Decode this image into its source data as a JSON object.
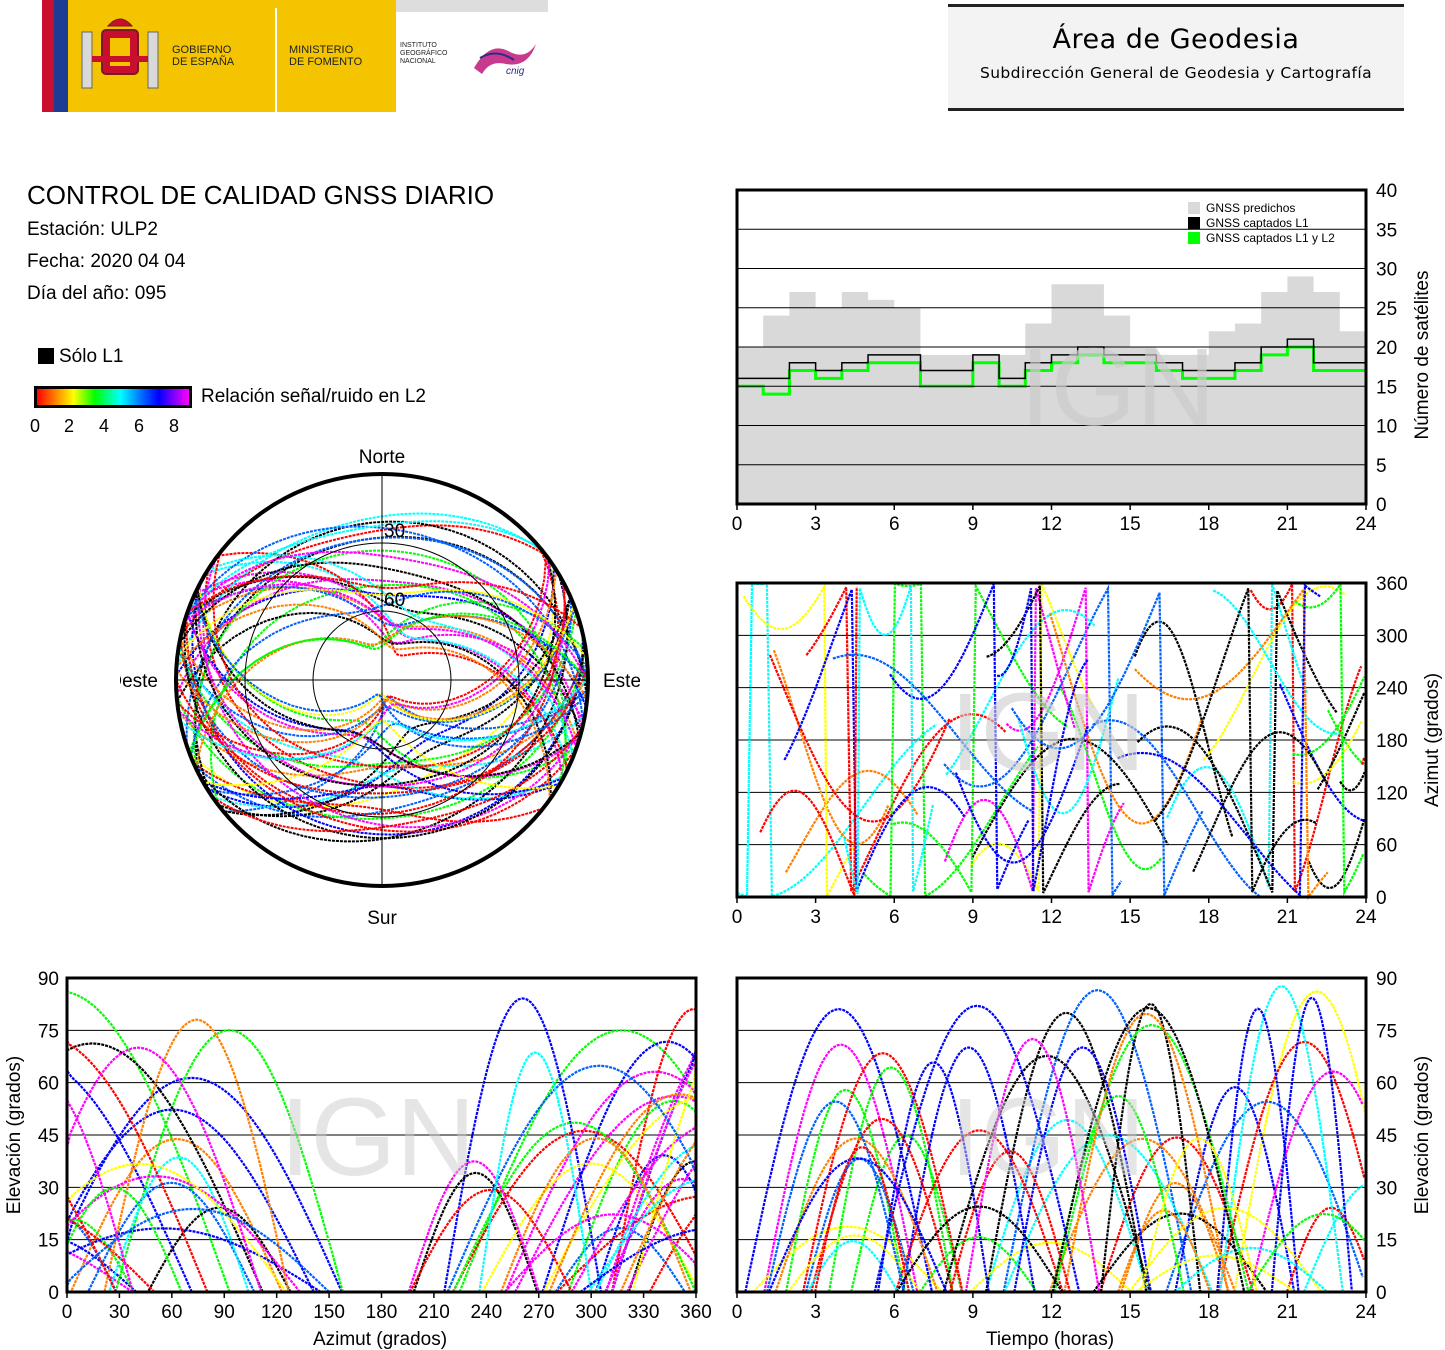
{
  "header": {
    "logo_gobierno": "GOBIERNO DE ESPAÑA",
    "logo_gobierno_l1": "GOBIERNO",
    "logo_gobierno_l2": "DE ESPAÑA",
    "logo_ministerio_l1": "MINISTERIO",
    "logo_ministerio_l2": "DE FOMENTO",
    "logo_instituto_l1": "INSTITUTO",
    "logo_instituto_l2": "GEOGRÁFICO",
    "logo_instituto_l3": "NACIONAL",
    "logo_cnig": "cnig",
    "area_title": "Área de Geodesia",
    "area_subtitle": "Subdirección General de Geodesia y Cartografía"
  },
  "report": {
    "title": "CONTROL DE CALIDAD GNSS DIARIO",
    "station": "Estación: ULP2",
    "date": "Fecha: 2020 04 04",
    "doy": "Día del año: 095",
    "legend_l1": "Sólo L1",
    "snr_label": "Relación señal/ruido en L2",
    "snr_ticks": [
      "0",
      "2",
      "4",
      "6",
      "8"
    ]
  },
  "colors": {
    "snr_scale": [
      "#ff0000",
      "#ff8000",
      "#ffff00",
      "#00ff00",
      "#00ffff",
      "#0060ff",
      "#0000ff",
      "#ff00ff"
    ],
    "l1_only": "#000000",
    "predicted": "#d9d9d9",
    "captured_l1l2": "#00ff00",
    "watermark": "#c8c8c8"
  },
  "watermark": "IGN",
  "chart_data": [
    {
      "id": "satellite_count",
      "type": "area",
      "ylabel": "Número de satélites",
      "xlim": [
        0,
        24
      ],
      "ylim": [
        0,
        40
      ],
      "x_ticks": [
        "0",
        "3",
        "6",
        "9",
        "12",
        "15",
        "18",
        "21",
        "24"
      ],
      "y_ticks": [
        "0",
        "5",
        "10",
        "15",
        "20",
        "25",
        "30",
        "35",
        "40"
      ],
      "grid": true,
      "legend_position": "top-right",
      "x": [
        0,
        1,
        2,
        3,
        4,
        5,
        6,
        7,
        8,
        9,
        10,
        11,
        12,
        13,
        14,
        15,
        16,
        17,
        18,
        19,
        20,
        21,
        22,
        23,
        24
      ],
      "series": [
        {
          "name": "GNSS predichos",
          "values": [
            20,
            24,
            27,
            25,
            27,
            26,
            25,
            19,
            19,
            19,
            19,
            23,
            28,
            28,
            24,
            20,
            19,
            19,
            22,
            23,
            27,
            29,
            27,
            22,
            20
          ]
        },
        {
          "name": "GNSS captados L1",
          "values": [
            16,
            16,
            18,
            17,
            18,
            19,
            19,
            17,
            17,
            19,
            16,
            18,
            19,
            20,
            19,
            19,
            18,
            17,
            17,
            18,
            20,
            21,
            18,
            18,
            16
          ]
        },
        {
          "name": "GNSS captados L1 y L2",
          "values": [
            15,
            14,
            17,
            16,
            17,
            18,
            18,
            15,
            15,
            18,
            15,
            17,
            18,
            19,
            18,
            18,
            17,
            16,
            16,
            17,
            19,
            20,
            17,
            17,
            15
          ]
        }
      ]
    },
    {
      "id": "azimuth_vs_time",
      "type": "scatter",
      "ylabel": "Azimut (grados)",
      "xlim": [
        0,
        24
      ],
      "ylim": [
        0,
        360
      ],
      "x_ticks": [
        "0",
        "3",
        "6",
        "9",
        "12",
        "15",
        "18",
        "21",
        "24"
      ],
      "y_ticks": [
        "0",
        "60",
        "120",
        "180",
        "240",
        "300",
        "360"
      ],
      "grid": true
    },
    {
      "id": "elevation_vs_azimuth",
      "type": "scatter",
      "xlabel": "Azimut (grados)",
      "ylabel": "Elevación (grados)",
      "xlim": [
        0,
        360
      ],
      "ylim": [
        0,
        90
      ],
      "x_ticks": [
        "0",
        "30",
        "60",
        "90",
        "120",
        "150",
        "180",
        "210",
        "240",
        "270",
        "300",
        "330",
        "360"
      ],
      "y_ticks": [
        "0",
        "15",
        "30",
        "45",
        "60",
        "75",
        "90"
      ],
      "grid": true
    },
    {
      "id": "elevation_vs_time",
      "type": "scatter",
      "xlabel": "Tiempo (horas)",
      "ylabel": "Elevación (grados)",
      "xlim": [
        0,
        24
      ],
      "ylim": [
        0,
        90
      ],
      "x_ticks": [
        "0",
        "3",
        "6",
        "9",
        "12",
        "15",
        "18",
        "21",
        "24"
      ],
      "y_ticks": [
        "0",
        "15",
        "30",
        "45",
        "60",
        "75",
        "90"
      ],
      "grid": true
    },
    {
      "id": "skyplot",
      "type": "scatter",
      "directions": {
        "north": "Norte",
        "south": "Sur",
        "west": "Oeste",
        "east": "Este"
      },
      "elevation_rings": [
        "30",
        "60"
      ]
    }
  ]
}
